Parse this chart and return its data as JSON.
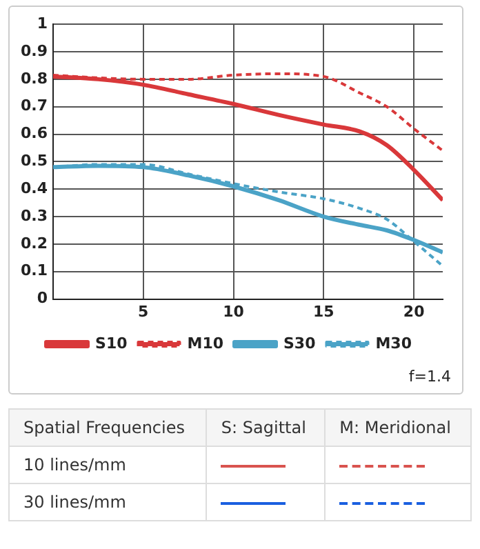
{
  "chart_data": [
    {
      "type": "line",
      "x": [
        0,
        2.5,
        5,
        7.5,
        10,
        12.5,
        15,
        17,
        18.5,
        20,
        21.6
      ],
      "xlim": [
        0,
        21.6
      ],
      "xticks": [
        5,
        10,
        15,
        20
      ],
      "ylim": [
        0,
        1
      ],
      "yticks": [
        0,
        0.1,
        0.2,
        0.3,
        0.4,
        0.5,
        0.6,
        0.7,
        0.8,
        0.9,
        1
      ],
      "grid": true,
      "legend": "bottom",
      "marker": "none",
      "series": [
        {
          "name": "S10",
          "color": "#d9383a",
          "line_style": "solid",
          "values": [
            0.81,
            0.8,
            0.78,
            0.745,
            0.71,
            0.67,
            0.635,
            0.61,
            0.56,
            0.47,
            0.36
          ]
        },
        {
          "name": "M10",
          "color": "#d9383a",
          "line_style": "dashed",
          "values": [
            0.815,
            0.805,
            0.8,
            0.8,
            0.815,
            0.82,
            0.81,
            0.75,
            0.7,
            0.62,
            0.54
          ]
        },
        {
          "name": "S30",
          "color": "#4ba3c7",
          "line_style": "solid",
          "values": [
            0.48,
            0.485,
            0.48,
            0.45,
            0.41,
            0.36,
            0.3,
            0.27,
            0.25,
            0.215,
            0.17
          ]
        },
        {
          "name": "M30",
          "color": "#4ba3c7",
          "line_style": "dashed",
          "values": [
            0.48,
            0.49,
            0.49,
            0.455,
            0.42,
            0.39,
            0.365,
            0.33,
            0.29,
            0.21,
            0.12
          ]
        }
      ],
      "annotations": [
        "f=1.4"
      ]
    },
    {
      "type": "other",
      "annotations": [
        "Spatial Frequencies",
        "S: Sagittal",
        "M: Meridional",
        "10 lines/mm",
        "30 lines/mm"
      ]
    }
  ]
}
